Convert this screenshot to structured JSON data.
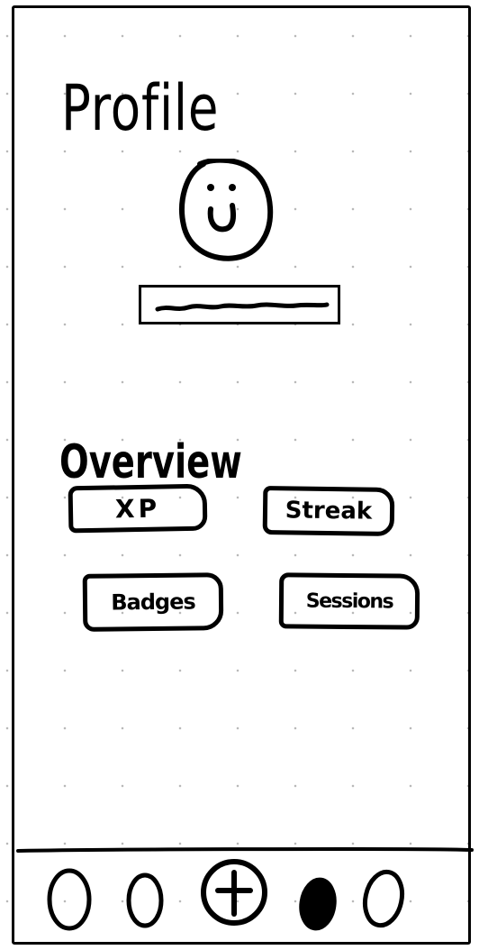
{
  "page": {
    "title": "Profile"
  },
  "profile": {
    "avatar_icon": "smiley-face-icon",
    "name_placeholder": ""
  },
  "overview": {
    "title": "Overview",
    "cards": [
      {
        "label": "XP"
      },
      {
        "label": "Streak"
      },
      {
        "label": "Badges"
      },
      {
        "label": "Sessions"
      }
    ]
  },
  "tabbar": {
    "items": [
      {
        "icon": "tab-circle-icon"
      },
      {
        "icon": "tab-circle-icon"
      },
      {
        "icon": "plus-circle-icon"
      },
      {
        "icon": "filled-circle-icon",
        "active": true
      },
      {
        "icon": "tab-circle-icon"
      }
    ]
  },
  "colors": {
    "ink": "#000000",
    "background": "#ffffff",
    "grid_dot": "#b9b9b9"
  }
}
